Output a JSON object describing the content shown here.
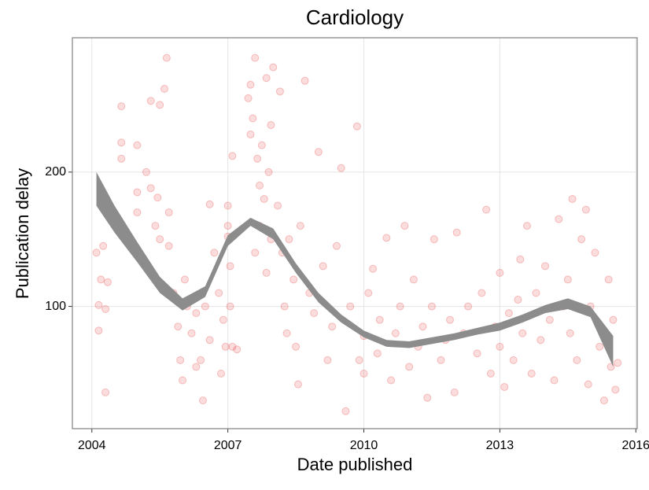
{
  "chart_data": {
    "type": "scatter",
    "title": "Cardiology",
    "x_label": "Date published",
    "y_label": "Publication delay",
    "xlim": [
      2003.57,
      2016.03
    ],
    "ylim": [
      9,
      300
    ],
    "xticks": [
      2004,
      2007,
      2010,
      2013,
      2016
    ],
    "yticks": [
      100,
      200
    ],
    "grid": true,
    "color": "#e41a1c",
    "x": [
      2004.1,
      2004.15,
      2004.2,
      2004.3,
      2004.35,
      2004.15,
      2004.25,
      2004.3,
      2004.65,
      2004.65,
      2004.65,
      2005,
      2005,
      2005,
      2005.2,
      2005.3,
      2005.3,
      2005.45,
      2005.5,
      2005.6,
      2005.5,
      2005.4,
      2005.65,
      2005.7,
      2005.8,
      2005.9,
      2005.95,
      2005.7,
      2006,
      2006.05,
      2006.2,
      2006.3,
      2006.4,
      2006.45,
      2006.5,
      2006.6,
      2006.7,
      2006.8,
      2006.85,
      2006.9,
      2006.6,
      2006.3,
      2006.1,
      2006.95,
      2007,
      2007,
      2007.05,
      2007.05,
      2007.1,
      2007.1,
      2007.2,
      2007,
      2007.45,
      2007.5,
      2007.55,
      2007.6,
      2007.65,
      2007.7,
      2007.75,
      2007.8,
      2007.85,
      2007.9,
      2007.95,
      2007.6,
      2007.7,
      2007.95,
      2007.5,
      2008,
      2007.85,
      2008.1,
      2008.15,
      2008.2,
      2008.25,
      2008.3,
      2008.35,
      2008.45,
      2008.5,
      2008.55,
      2008.6,
      2008.7,
      2008.8,
      2008.9,
      2009,
      2009.1,
      2009.2,
      2009.3,
      2009.4,
      2009.5,
      2009.6,
      2009.7,
      2009.85,
      2009.9,
      2010,
      2010,
      2010.1,
      2010.2,
      2010.3,
      2010.35,
      2010.5,
      2010.6,
      2010.7,
      2010.8,
      2010.9,
      2011,
      2011.1,
      2011.2,
      2011.3,
      2011.4,
      2011.5,
      2011.55,
      2011.7,
      2011.8,
      2011.9,
      2012,
      2012.05,
      2012.2,
      2012.3,
      2012.5,
      2012.6,
      2012.7,
      2012.8,
      2012.9,
      2013,
      2013,
      2013.1,
      2013.2,
      2013.3,
      2013.4,
      2013.45,
      2013.5,
      2013.6,
      2013.7,
      2013.8,
      2013.9,
      2014,
      2014.1,
      2014.2,
      2014.3,
      2014.4,
      2014.5,
      2014.55,
      2014.6,
      2014.7,
      2014.8,
      2014.9,
      2014.95,
      2015,
      2015.1,
      2015.2,
      2015.3,
      2015.4,
      2015.45,
      2015.5,
      2015.55,
      2015.6
    ],
    "y": [
      140,
      101,
      120,
      36,
      118,
      82,
      145,
      98,
      222,
      249,
      210,
      220,
      185,
      170,
      200,
      188,
      253,
      181,
      250,
      262,
      150,
      160,
      285,
      145,
      110,
      85,
      60,
      170,
      45,
      120,
      80,
      95,
      60,
      30,
      100,
      75,
      140,
      110,
      50,
      90,
      176,
      55,
      100,
      70,
      175,
      152,
      130,
      100,
      212,
      70,
      68,
      160,
      255,
      265,
      240,
      285,
      210,
      190,
      220,
      180,
      270,
      200,
      235,
      140,
      160,
      150,
      228,
      278,
      125,
      175,
      260,
      140,
      100,
      80,
      150,
      120,
      70,
      42,
      160,
      268,
      110,
      95,
      215,
      130,
      60,
      85,
      145,
      203,
      22,
      100,
      234,
      60,
      50,
      78,
      110,
      128,
      65,
      90,
      151,
      45,
      80,
      100,
      160,
      55,
      120,
      70,
      85,
      32,
      100,
      150,
      60,
      75,
      90,
      36,
      155,
      80,
      100,
      65,
      110,
      172,
      50,
      85,
      125,
      70,
      40,
      95,
      60,
      105,
      135,
      80,
      160,
      50,
      110,
      75,
      130,
      90,
      45,
      165,
      100,
      120,
      80,
      180,
      60,
      150,
      172,
      42,
      100,
      140,
      70,
      30,
      120,
      55,
      90,
      38,
      58
    ],
    "band": {
      "color": "#8c8c8c",
      "x": [
        2004.1,
        2004.5,
        2005,
        2005.5,
        2006,
        2006.5,
        2007,
        2007.5,
        2008,
        2008.5,
        2009,
        2009.5,
        2010,
        2010.5,
        2011,
        2011.5,
        2012,
        2012.5,
        2013,
        2013.5,
        2014,
        2014.5,
        2015,
        2015.5
      ],
      "lower": [
        175,
        155,
        133,
        110,
        97,
        107,
        145,
        160,
        150,
        125,
        103,
        88,
        77,
        70,
        69,
        72,
        75,
        79,
        82,
        88,
        95,
        98,
        92,
        55
      ],
      "upper": [
        200,
        175,
        148,
        122,
        106,
        115,
        153,
        166,
        158,
        132,
        110,
        94,
        82,
        75,
        74,
        77,
        80,
        84,
        88,
        94,
        101,
        106,
        100,
        78
      ]
    }
  }
}
